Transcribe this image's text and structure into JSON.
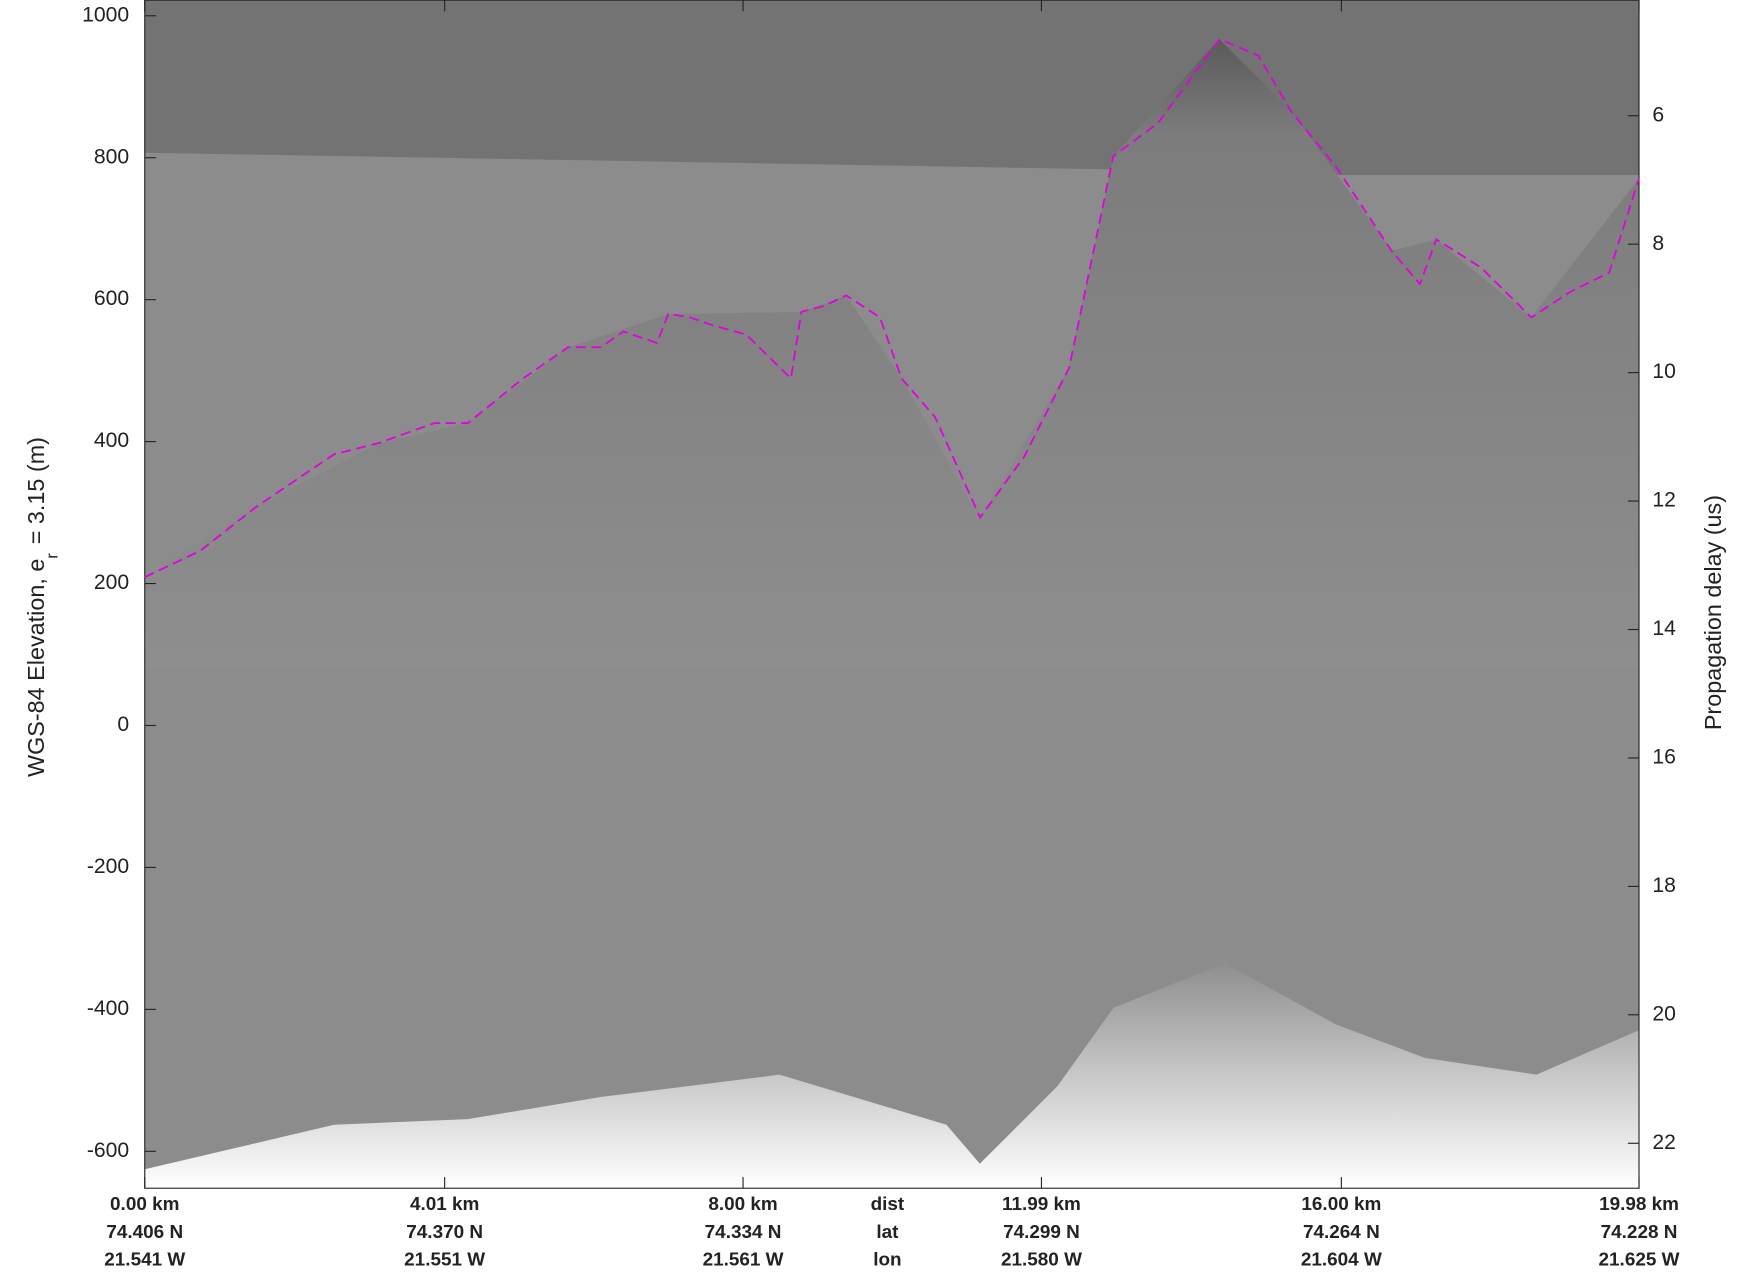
{
  "chart_data": {
    "type": "line",
    "ylabel": [
      "WGS-84 Elevation, e",
      "r",
      "= 3.15 (m)"
    ],
    "y2label": "Propagation delay (us)",
    "xlim": [
      0,
      19.98
    ],
    "xticks": [
      {
        "value": 0,
        "label": "0.00 km"
      },
      {
        "value": 4.01,
        "label": "4.01 km"
      },
      {
        "value": 8.0,
        "label": "8.00 km"
      },
      {
        "value": 11.99,
        "label": "11.99 km"
      },
      {
        "value": 16.0,
        "label": "16.00 km"
      },
      {
        "value": 19.98,
        "label": "19.98 km"
      }
    ],
    "lat_labels": [
      "74.406 N",
      "74.370 N",
      "74.334 N",
      "74.299 N",
      "74.264 N",
      "74.228 N"
    ],
    "lon_labels": [
      "21.541 W",
      "21.551 W",
      "21.561 W",
      "21.580 W",
      "21.604 W",
      "21.625 W"
    ],
    "row_names": [
      "dist",
      "lat",
      "lon"
    ],
    "ylim": [
      -652,
      1022
    ],
    "yticks": [
      -600,
      -400,
      -200,
      0,
      200,
      400,
      600,
      800,
      1000
    ],
    "y2lim": [
      4.2,
      22.7
    ],
    "y2ticks": [
      6,
      8,
      10,
      12,
      14,
      16,
      18,
      20,
      22
    ],
    "series": [
      {
        "color": "#e000e0",
        "x": [
          0,
          0.74,
          1.49,
          2.53,
          3.13,
          3.87,
          4.32,
          5.06,
          5.66,
          6.1,
          6.4,
          6.85,
          7.0,
          7.29,
          7.59,
          8.04,
          8.64,
          8.78,
          9.08,
          9.38,
          9.83,
          10.12,
          10.57,
          11.17,
          11.76,
          12.36,
          12.95,
          13.55,
          14.37,
          14.89,
          15.33,
          15.93,
          16.67,
          17.05,
          17.27,
          17.87,
          18.54,
          19.06,
          19.58,
          19.98
        ],
        "values": [
          209,
          246,
          308,
          382,
          398,
          426,
          426,
          489,
          533,
          533,
          555,
          539,
          580,
          575,
          564,
          551,
          489,
          583,
          591,
          606,
          575,
          489,
          434,
          293,
          379,
          504,
          802,
          849,
          967,
          944,
          865,
          787,
          669,
          622,
          685,
          645,
          575,
          611,
          638,
          771
        ]
      }
    ]
  }
}
